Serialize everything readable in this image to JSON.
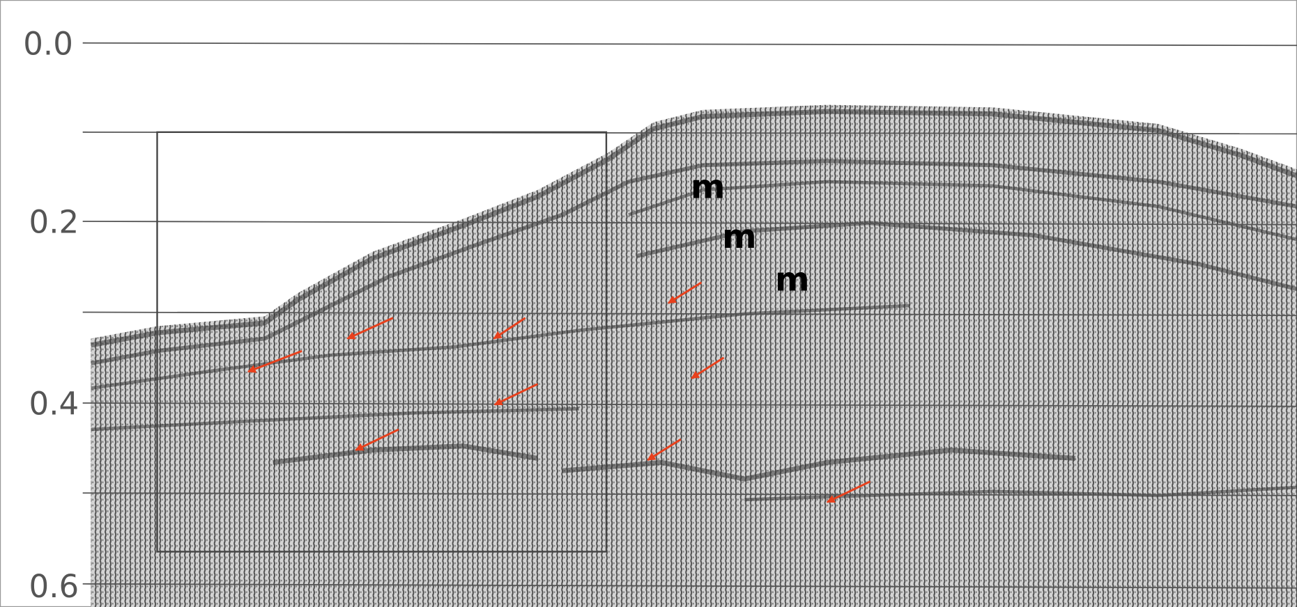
{
  "axis_labels": [
    "0.0",
    "0.2",
    "0.4",
    "0.6"
  ],
  "annotations": [
    "m",
    "m",
    "m"
  ]
}
